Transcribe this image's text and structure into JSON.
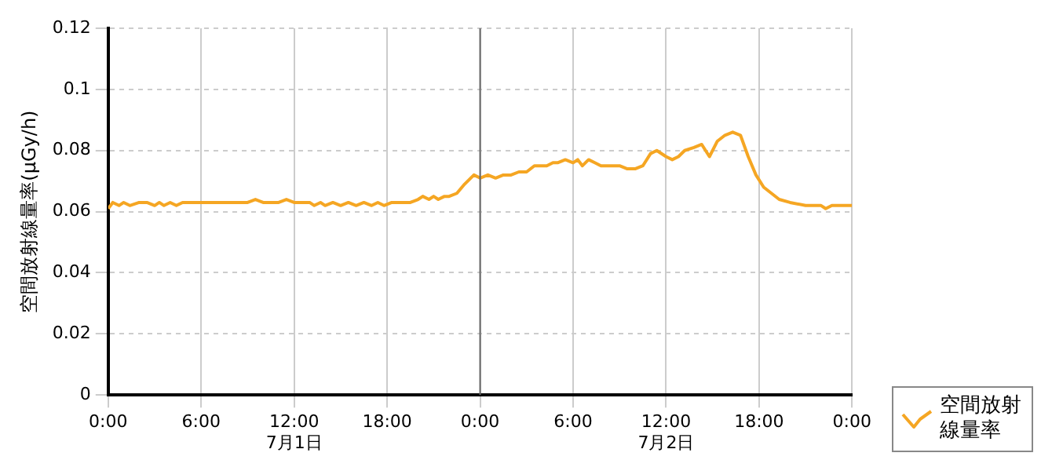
{
  "chart_data": {
    "type": "line",
    "ylabel": "空間放射線量率(μGy/h)",
    "xlim": [
      "--07-01T00:00",
      "--07-03T00:00"
    ],
    "xticks": [
      {
        "value": "--07-01T00:00",
        "label": "0:00"
      },
      {
        "value": "--07-01T06:00",
        "label": "6:00"
      },
      {
        "value": "--07-01T12:00",
        "label": "12:00\n7月1日"
      },
      {
        "value": "--07-01T18:00",
        "label": "18:00"
      },
      {
        "value": "--07-02T00:00",
        "label": "0:00"
      },
      {
        "value": "--07-02T06:00",
        "label": "6:00"
      },
      {
        "value": "--07-02T12:00",
        "label": "12:00\n7月2日"
      },
      {
        "value": "--07-02T18:00",
        "label": "18:00"
      },
      {
        "value": "--07-03T00:00",
        "label": "0:00"
      }
    ],
    "ylim": [
      0,
      0.12
    ],
    "yticks": [
      0,
      0.02,
      0.04,
      0.06,
      0.08,
      0.1,
      0.12
    ],
    "grid": true,
    "legend": "bottom right",
    "ref_lines": [
      {
        "axis": "x",
        "value": "--07-02T00:00",
        "color": "#666666"
      }
    ],
    "x": [
      "--07-01T00:00",
      "--07-01T00:18",
      "--07-01T00:42",
      "--07-01T01:00",
      "--07-01T01:24",
      "--07-01T02:00",
      "--07-01T02:30",
      "--07-01T03:00",
      "--07-01T03:18",
      "--07-01T03:36",
      "--07-01T04:00",
      "--07-01T04:24",
      "--07-01T04:48",
      "--07-01T05:30",
      "--07-01T06:00",
      "--07-01T07:00",
      "--07-01T08:00",
      "--07-01T09:00",
      "--07-01T09:30",
      "--07-01T10:00",
      "--07-01T11:00",
      "--07-01T11:30",
      "--07-01T12:00",
      "--07-01T13:00",
      "--07-01T13:18",
      "--07-01T13:42",
      "--07-01T14:00",
      "--07-01T14:30",
      "--07-01T15:00",
      "--07-01T15:30",
      "--07-01T16:00",
      "--07-01T16:30",
      "--07-01T17:00",
      "--07-01T17:24",
      "--07-01T17:48",
      "--07-01T18:18",
      "--07-01T19:00",
      "--07-01T19:30",
      "--07-01T20:00",
      "--07-01T20:18",
      "--07-01T20:42",
      "--07-01T21:00",
      "--07-01T21:18",
      "--07-01T21:42",
      "--07-01T22:00",
      "--07-01T22:30",
      "--07-01T23:00",
      "--07-01T23:36",
      "--07-02T00:00",
      "--07-02T00:30",
      "--07-02T01:00",
      "--07-02T01:30",
      "--07-02T02:00",
      "--07-02T02:30",
      "--07-02T03:00",
      "--07-02T03:30",
      "--07-02T04:00",
      "--07-02T04:18",
      "--07-02T04:42",
      "--07-02T05:00",
      "--07-02T05:30",
      "--07-02T06:00",
      "--07-02T06:18",
      "--07-02T06:36",
      "--07-02T07:00",
      "--07-02T07:24",
      "--07-02T07:48",
      "--07-02T08:18",
      "--07-02T09:00",
      "--07-02T09:30",
      "--07-02T10:00",
      "--07-02T10:30",
      "--07-02T11:00",
      "--07-02T11:24",
      "--07-02T12:00",
      "--07-02T12:24",
      "--07-02T12:48",
      "--07-02T13:12",
      "--07-02T13:48",
      "--07-02T14:18",
      "--07-02T14:48",
      "--07-02T15:18",
      "--07-02T15:48",
      "--07-02T16:18",
      "--07-02T16:48",
      "--07-02T17:18",
      "--07-02T17:48",
      "--07-02T18:18",
      "--07-02T18:48",
      "--07-02T19:18",
      "--07-02T20:00",
      "--07-02T21:00",
      "--07-02T21:30",
      "--07-02T22:00",
      "--07-02T22:18",
      "--07-02T22:42",
      "--07-02T23:00",
      "--07-02T23:30",
      "--07-03T00:00"
    ],
    "series": [
      {
        "name": "空間放射線量率",
        "color": "#f5a623",
        "values": [
          0.061,
          0.063,
          0.062,
          0.063,
          0.062,
          0.063,
          0.063,
          0.062,
          0.063,
          0.062,
          0.063,
          0.062,
          0.063,
          0.063,
          0.063,
          0.063,
          0.063,
          0.063,
          0.064,
          0.063,
          0.063,
          0.064,
          0.063,
          0.063,
          0.062,
          0.063,
          0.062,
          0.063,
          0.062,
          0.063,
          0.062,
          0.063,
          0.062,
          0.063,
          0.062,
          0.063,
          0.063,
          0.063,
          0.064,
          0.065,
          0.064,
          0.065,
          0.064,
          0.065,
          0.065,
          0.066,
          0.069,
          0.072,
          0.071,
          0.072,
          0.071,
          0.072,
          0.072,
          0.073,
          0.073,
          0.075,
          0.075,
          0.075,
          0.076,
          0.076,
          0.077,
          0.076,
          0.077,
          0.075,
          0.077,
          0.076,
          0.075,
          0.075,
          0.075,
          0.074,
          0.074,
          0.075,
          0.079,
          0.08,
          0.078,
          0.077,
          0.078,
          0.08,
          0.081,
          0.082,
          0.078,
          0.083,
          0.085,
          0.086,
          0.085,
          0.078,
          0.072,
          0.068,
          0.066,
          0.064,
          0.063,
          0.062,
          0.062,
          0.062,
          0.061,
          0.062,
          0.062,
          0.062,
          0.062
        ]
      }
    ]
  }
}
